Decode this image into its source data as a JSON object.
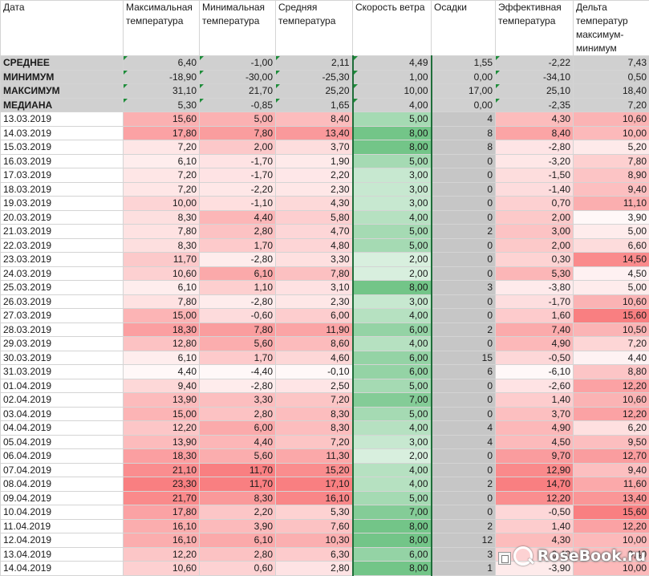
{
  "headers": [
    "Дата",
    "Максимальная температура",
    "Минимальная температура",
    "Средняя температура",
    "Скорость ветра",
    "Осадки",
    "Эффективная температура",
    "Дельта температур максимум-минимум"
  ],
  "stats": [
    {
      "label": "СРЕДНЕЕ",
      "values": [
        "6,40",
        "-1,00",
        "2,11",
        "4,49",
        "1,55",
        "-2,22",
        "7,43"
      ]
    },
    {
      "label": "МИНИМУМ",
      "values": [
        "-18,90",
        "-30,00",
        "-25,30",
        "1,00",
        "0,00",
        "-34,10",
        "0,50"
      ]
    },
    {
      "label": "МАКСИМУМ",
      "values": [
        "31,10",
        "21,70",
        "25,20",
        "10,00",
        "17,00",
        "25,10",
        "18,40"
      ]
    },
    {
      "label": "МЕДИАНА",
      "values": [
        "5,30",
        "-0,85",
        "1,65",
        "4,00",
        "0,00",
        "-2,35",
        "7,20"
      ]
    }
  ],
  "rows": [
    {
      "date": "13.03.2019",
      "values": [
        "15,60",
        "5,00",
        "8,40",
        "5,00",
        "4",
        "4,30",
        "10,60"
      ]
    },
    {
      "date": "14.03.2019",
      "values": [
        "17,80",
        "7,80",
        "13,40",
        "8,00",
        "8",
        "8,40",
        "10,00"
      ]
    },
    {
      "date": "15.03.2019",
      "values": [
        "7,20",
        "2,00",
        "3,70",
        "8,00",
        "8",
        "-2,80",
        "5,20"
      ]
    },
    {
      "date": "16.03.2019",
      "values": [
        "6,10",
        "-1,70",
        "1,90",
        "5,00",
        "0",
        "-3,20",
        "7,80"
      ]
    },
    {
      "date": "17.03.2019",
      "values": [
        "7,20",
        "-1,70",
        "2,20",
        "3,00",
        "0",
        "-1,50",
        "8,90"
      ]
    },
    {
      "date": "18.03.2019",
      "values": [
        "7,20",
        "-2,20",
        "2,30",
        "3,00",
        "0",
        "-1,40",
        "9,40"
      ]
    },
    {
      "date": "19.03.2019",
      "values": [
        "10,00",
        "-1,10",
        "4,30",
        "3,00",
        "0",
        "0,70",
        "11,10"
      ]
    },
    {
      "date": "20.03.2019",
      "values": [
        "8,30",
        "4,40",
        "5,80",
        "4,00",
        "0",
        "2,00",
        "3,90"
      ]
    },
    {
      "date": "21.03.2019",
      "values": [
        "7,80",
        "2,80",
        "4,70",
        "5,00",
        "2",
        "3,00",
        "5,00"
      ]
    },
    {
      "date": "22.03.2019",
      "values": [
        "8,30",
        "1,70",
        "4,80",
        "5,00",
        "0",
        "2,00",
        "6,60"
      ]
    },
    {
      "date": "23.03.2019",
      "values": [
        "11,70",
        "-2,80",
        "3,30",
        "2,00",
        "0",
        "0,30",
        "14,50"
      ]
    },
    {
      "date": "24.03.2019",
      "values": [
        "10,60",
        "6,10",
        "7,80",
        "2,00",
        "0",
        "5,30",
        "4,50"
      ]
    },
    {
      "date": "25.03.2019",
      "values": [
        "6,10",
        "1,10",
        "3,10",
        "8,00",
        "3",
        "-3,80",
        "5,00"
      ]
    },
    {
      "date": "26.03.2019",
      "values": [
        "7,80",
        "-2,80",
        "2,30",
        "3,00",
        "0",
        "-1,70",
        "10,60"
      ]
    },
    {
      "date": "27.03.2019",
      "values": [
        "15,00",
        "-0,60",
        "6,00",
        "4,00",
        "0",
        "1,60",
        "15,60"
      ]
    },
    {
      "date": "28.03.2019",
      "values": [
        "18,30",
        "7,80",
        "11,90",
        "6,00",
        "2",
        "7,40",
        "10,50"
      ]
    },
    {
      "date": "29.03.2019",
      "values": [
        "12,80",
        "5,60",
        "8,60",
        "4,00",
        "0",
        "4,90",
        "7,20"
      ]
    },
    {
      "date": "30.03.2019",
      "values": [
        "6,10",
        "1,70",
        "4,60",
        "6,00",
        "15",
        "-0,50",
        "4,40"
      ]
    },
    {
      "date": "31.03.2019",
      "values": [
        "4,40",
        "-4,40",
        "-0,10",
        "6,00",
        "6",
        "-6,10",
        "8,80"
      ]
    },
    {
      "date": "01.04.2019",
      "values": [
        "9,40",
        "-2,80",
        "2,50",
        "5,00",
        "0",
        "-2,60",
        "12,20"
      ]
    },
    {
      "date": "02.04.2019",
      "values": [
        "13,90",
        "3,30",
        "7,20",
        "7,00",
        "0",
        "1,40",
        "10,60"
      ]
    },
    {
      "date": "03.04.2019",
      "values": [
        "15,00",
        "2,80",
        "8,30",
        "5,00",
        "0",
        "3,70",
        "12,20"
      ]
    },
    {
      "date": "04.04.2019",
      "values": [
        "12,20",
        "6,00",
        "8,30",
        "4,00",
        "4",
        "4,90",
        "6,20"
      ]
    },
    {
      "date": "05.04.2019",
      "values": [
        "13,90",
        "4,40",
        "7,20",
        "3,00",
        "4",
        "4,50",
        "9,50"
      ]
    },
    {
      "date": "06.04.2019",
      "values": [
        "18,30",
        "5,60",
        "11,30",
        "2,00",
        "0",
        "9,70",
        "12,70"
      ]
    },
    {
      "date": "07.04.2019",
      "values": [
        "21,10",
        "11,70",
        "15,20",
        "4,00",
        "0",
        "12,90",
        "9,40"
      ]
    },
    {
      "date": "08.04.2019",
      "values": [
        "23,30",
        "11,70",
        "17,10",
        "4,00",
        "2",
        "14,70",
        "11,60"
      ]
    },
    {
      "date": "09.04.2019",
      "values": [
        "21,70",
        "8,30",
        "16,10",
        "5,00",
        "0",
        "12,20",
        "13,40"
      ]
    },
    {
      "date": "10.04.2019",
      "values": [
        "17,80",
        "2,20",
        "5,30",
        "7,00",
        "0",
        "-0,50",
        "15,60"
      ]
    },
    {
      "date": "11.04.2019",
      "values": [
        "16,10",
        "3,90",
        "7,60",
        "8,00",
        "2",
        "1,40",
        "12,20"
      ]
    },
    {
      "date": "12.04.2019",
      "values": [
        "16,10",
        "6,10",
        "10,30",
        "8,00",
        "12",
        "4,30",
        "10,00"
      ]
    },
    {
      "date": "13.04.2019",
      "values": [
        "12,20",
        "2,80",
        "6,30",
        "6,00",
        "3",
        "0,40",
        "9,40"
      ]
    },
    {
      "date": "14.04.2019",
      "values": [
        "10,60",
        "0,60",
        "2,80",
        "8,00",
        "1",
        "-3,90",
        "10,00"
      ]
    }
  ],
  "watermark": "RoseBook.ru",
  "watermark_icon": "magnifier-icon",
  "paste_icon": "paste-options-icon",
  "colors": {
    "heat_high": "#f8696b",
    "heat_low": "#ffffff",
    "wind_high": "#63be7b",
    "wind_low": "#ffffff",
    "precip_fill": "#c6c6c6",
    "stats_fill": "#d0d0d0",
    "selection_border": "#1f6e3a",
    "flag": "#1e8c3a"
  }
}
